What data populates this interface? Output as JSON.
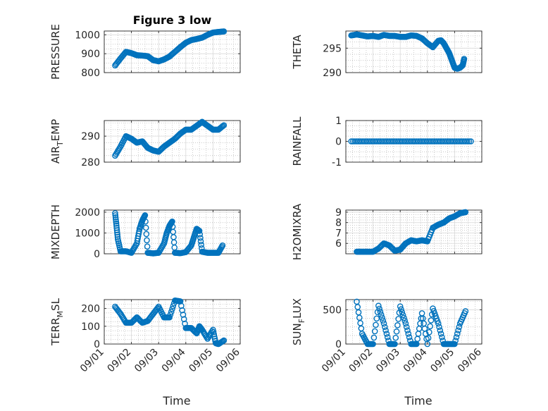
{
  "colors": {
    "marker": "#0072BD",
    "axis": "#262626",
    "grid": "#b8b8b8"
  },
  "x_axis": {
    "ticks": [
      {
        "day": 1,
        "label": "09/01"
      },
      {
        "day": 2,
        "label": "09/02"
      },
      {
        "day": 3,
        "label": "09/03"
      },
      {
        "day": 4,
        "label": "09/04"
      },
      {
        "day": 5,
        "label": "09/05"
      },
      {
        "day": 6,
        "label": "09/06"
      }
    ],
    "xlim": [
      1,
      6
    ],
    "label": "Time"
  },
  "chart_data": [
    {
      "type": "scatter",
      "id": "pressure",
      "title": "Figure 3 low",
      "ylabel": "PRESSURE",
      "ylim": [
        800,
        1020
      ],
      "yticks": [
        800,
        900,
        1000
      ],
      "x": [
        1.4,
        1.6,
        1.8,
        2.0,
        2.2,
        2.4,
        2.6,
        2.8,
        3.0,
        3.2,
        3.4,
        3.6,
        3.8,
        4.0,
        4.2,
        4.4,
        4.6,
        4.8,
        5.0,
        5.2,
        5.4
      ],
      "y": [
        838,
        875,
        910,
        903,
        892,
        890,
        887,
        866,
        860,
        870,
        885,
        910,
        935,
        958,
        972,
        978,
        985,
        1000,
        1012,
        1015,
        1018
      ]
    },
    {
      "type": "scatter",
      "id": "theta",
      "ylabel": "THETA",
      "ylim": [
        290,
        298.5
      ],
      "yticks": [
        290,
        295
      ],
      "x": [
        1.2,
        1.4,
        1.6,
        1.8,
        2.0,
        2.2,
        2.4,
        2.6,
        2.8,
        3.0,
        3.2,
        3.4,
        3.6,
        3.8,
        4.0,
        4.2,
        4.4,
        4.5,
        4.6,
        4.7,
        4.8,
        4.9,
        5.0,
        5.1,
        5.2,
        5.3,
        5.35
      ],
      "y": [
        297.6,
        297.8,
        297.6,
        297.4,
        297.5,
        297.3,
        297.7,
        297.5,
        297.5,
        297.3,
        297.3,
        297.6,
        297.5,
        297.0,
        296.0,
        295.2,
        296.5,
        296.6,
        296.0,
        295.0,
        294.0,
        292.5,
        291.0,
        290.8,
        291.0,
        291.5,
        292.8
      ]
    },
    {
      "type": "scatter",
      "id": "air_temp",
      "ylabel": "AIR_TEMP",
      "ylim": [
        280,
        296
      ],
      "yticks": [
        280,
        290
      ],
      "x": [
        1.4,
        1.6,
        1.8,
        2.0,
        2.2,
        2.4,
        2.6,
        2.8,
        3.0,
        3.2,
        3.4,
        3.6,
        3.8,
        4.0,
        4.2,
        4.4,
        4.6,
        4.8,
        5.0,
        5.2,
        5.4
      ],
      "y": [
        282.5,
        286,
        290,
        289,
        287.5,
        288,
        285.5,
        284.5,
        284,
        286,
        287.5,
        289,
        291,
        292.5,
        292.5,
        294,
        295.5,
        294,
        292.5,
        292.5,
        294.2
      ]
    },
    {
      "type": "scatter",
      "id": "rainfall",
      "ylabel": "RAINFALL",
      "ylim": [
        -1,
        1
      ],
      "yticks": [
        -1,
        0,
        1
      ],
      "x": [
        1.2,
        1.6,
        2.0,
        2.4,
        2.8,
        3.2,
        3.6,
        4.0,
        4.4,
        4.8,
        5.2,
        5.6
      ],
      "y": [
        0,
        0,
        0,
        0,
        0,
        0,
        0,
        0,
        0,
        0,
        0,
        0
      ]
    },
    {
      "type": "scatter",
      "id": "mixdepth",
      "ylabel": "MIXDEPTH",
      "ylim": [
        0,
        2100
      ],
      "yticks": [
        0,
        1000,
        2000
      ],
      "x": [
        1.4,
        1.45,
        1.5,
        1.6,
        1.8,
        2.0,
        2.2,
        2.3,
        2.4,
        2.5,
        2.6,
        2.8,
        3.0,
        3.2,
        3.3,
        3.4,
        3.5,
        3.6,
        3.8,
        4.0,
        4.2,
        4.3,
        4.4,
        4.5,
        4.6,
        4.8,
        5.0,
        5.2,
        5.35
      ],
      "y": [
        1950,
        1350,
        700,
        120,
        120,
        50,
        500,
        1200,
        1600,
        1850,
        50,
        20,
        50,
        500,
        1000,
        1350,
        1550,
        50,
        30,
        80,
        400,
        800,
        1200,
        1100,
        100,
        50,
        50,
        50,
        400
      ]
    },
    {
      "type": "scatter",
      "id": "h2omixra",
      "ylabel": "H2OMIXRA",
      "ylim": [
        5,
        9.2
      ],
      "yticks": [
        6,
        7,
        8,
        9
      ],
      "x": [
        1.4,
        1.6,
        1.8,
        2.0,
        2.2,
        2.4,
        2.6,
        2.8,
        3.0,
        3.2,
        3.4,
        3.6,
        3.8,
        4.0,
        4.2,
        4.4,
        4.6,
        4.8,
        5.0,
        5.2,
        5.4
      ],
      "y": [
        5.2,
        5.2,
        5.2,
        5.2,
        5.5,
        6.0,
        5.8,
        5.3,
        5.4,
        6.0,
        6.3,
        6.2,
        6.3,
        6.2,
        7.5,
        7.8,
        8.0,
        8.4,
        8.6,
        8.9,
        9.0
      ]
    },
    {
      "type": "scatter",
      "id": "terr_msl",
      "ylabel": "TERR_MSL",
      "ylim": [
        0,
        250
      ],
      "yticks": [
        0,
        100,
        200
      ],
      "x": [
        1.4,
        1.6,
        1.8,
        2.0,
        2.2,
        2.4,
        2.6,
        2.8,
        3.0,
        3.2,
        3.4,
        3.6,
        3.8,
        4.0,
        4.2,
        4.4,
        4.5,
        4.6,
        4.8,
        5.0,
        5.1,
        5.2,
        5.4
      ],
      "y": [
        210,
        170,
        120,
        120,
        150,
        120,
        130,
        170,
        210,
        150,
        150,
        245,
        240,
        90,
        90,
        60,
        100,
        80,
        30,
        80,
        5,
        0,
        20
      ]
    },
    {
      "type": "scatter",
      "id": "sun_flux",
      "ylabel": "SUN_FLUX",
      "ylim": [
        0,
        650
      ],
      "yticks": [
        0,
        500
      ],
      "x": [
        1.4,
        1.6,
        1.8,
        2.0,
        2.2,
        2.4,
        2.6,
        2.8,
        3.0,
        3.2,
        3.4,
        3.6,
        3.8,
        4.0,
        4.2,
        4.4,
        4.6,
        4.8,
        5.0,
        5.2,
        5.4
      ],
      "y": [
        620,
        150,
        0,
        0,
        560,
        300,
        0,
        0,
        550,
        300,
        0,
        0,
        450,
        0,
        520,
        300,
        0,
        0,
        0,
        300,
        480
      ]
    }
  ]
}
